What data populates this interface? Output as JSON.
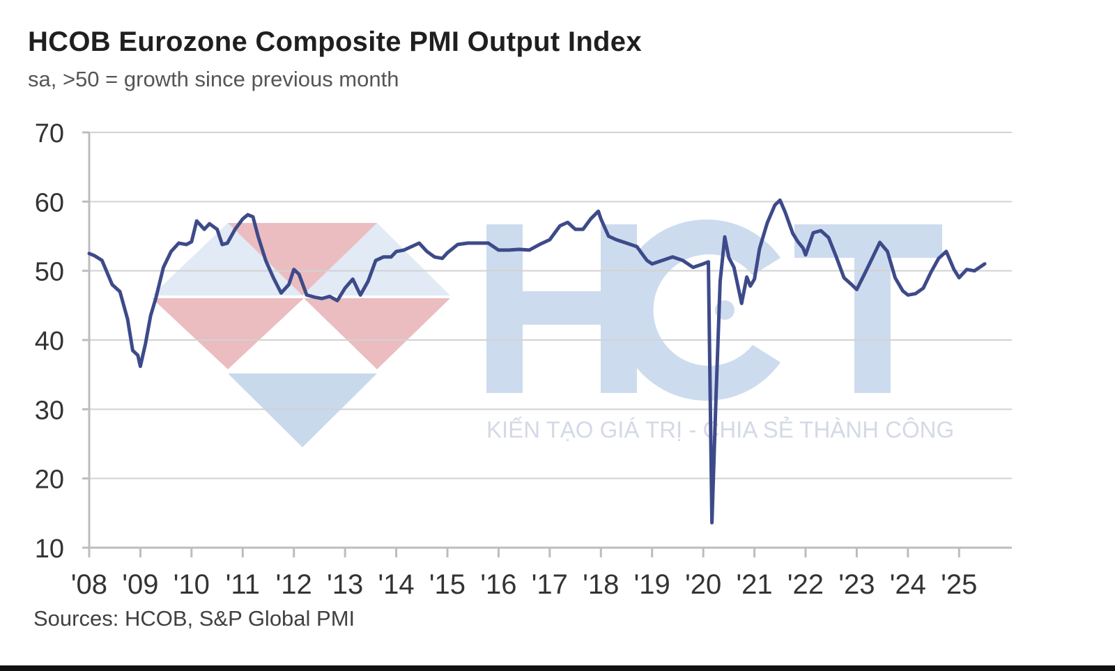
{
  "header": {
    "title": "HCOB Eurozone Composite PMI Output Index",
    "subtitle": "sa, >50 = growth since previous month"
  },
  "footer": {
    "source": "Sources: HCOB, S&P Global PMI"
  },
  "watermark": {
    "logo_text": "HCT",
    "tagline": "KIẾN TẠO GIÁ TRỊ - CHIA SẺ THÀNH CÔNG",
    "logo_colors": {
      "red": "#e8b4b8",
      "blue": "#c5d6ea"
    }
  },
  "chart_data": {
    "type": "line",
    "title": "HCOB Eurozone Composite PMI Output Index",
    "subtitle": "sa, >50 = growth since previous month",
    "xlabel": "",
    "ylabel": "",
    "ylim": [
      10,
      70
    ],
    "yticks": [
      10,
      20,
      30,
      40,
      50,
      60,
      70
    ],
    "xlim": [
      2008.0,
      2025.5
    ],
    "xticks": [
      {
        "value": 2008,
        "label": "'08"
      },
      {
        "value": 2009,
        "label": "'09"
      },
      {
        "value": 2010,
        "label": "'10"
      },
      {
        "value": 2011,
        "label": "'11"
      },
      {
        "value": 2012,
        "label": "'12"
      },
      {
        "value": 2013,
        "label": "'13"
      },
      {
        "value": 2014,
        "label": "'14"
      },
      {
        "value": 2015,
        "label": "'15"
      },
      {
        "value": 2016,
        "label": "'16"
      },
      {
        "value": 2017,
        "label": "'17"
      },
      {
        "value": 2018,
        "label": "'18"
      },
      {
        "value": 2019,
        "label": "'19"
      },
      {
        "value": 2020,
        "label": "'20"
      },
      {
        "value": 2021,
        "label": "'21"
      },
      {
        "value": 2022,
        "label": "'22"
      },
      {
        "value": 2023,
        "label": "'23"
      },
      {
        "value": 2024,
        "label": "'24"
      },
      {
        "value": 2025,
        "label": "'25"
      }
    ],
    "grid": true,
    "series_color": "#3d4a8a",
    "series": [
      {
        "x": [
          2008.0,
          2008.1,
          2008.25,
          2008.45,
          2008.6,
          2008.75,
          2008.85,
          2008.95,
          2009.0,
          2009.1,
          2009.2,
          2009.3,
          2009.45,
          2009.6,
          2009.75,
          2009.9,
          2010.0,
          2010.1,
          2010.25,
          2010.35,
          2010.5,
          2010.6,
          2010.7,
          2010.85,
          2011.0,
          2011.1,
          2011.2,
          2011.3,
          2011.45,
          2011.6,
          2011.75,
          2011.9,
          2012.0,
          2012.1,
          2012.25,
          2012.4,
          2012.55,
          2012.7,
          2012.85,
          2013.0,
          2013.15,
          2013.3,
          2013.45,
          2013.6,
          2013.75,
          2013.9,
          2014.0,
          2014.15,
          2014.3,
          2014.45,
          2014.6,
          2014.75,
          2014.9,
          2015.0,
          2015.2,
          2015.4,
          2015.6,
          2015.8,
          2016.0,
          2016.2,
          2016.4,
          2016.6,
          2016.8,
          2017.0,
          2017.2,
          2017.35,
          2017.5,
          2017.65,
          2017.8,
          2017.95,
          2018.0,
          2018.15,
          2018.3,
          2018.5,
          2018.7,
          2018.9,
          2019.0,
          2019.2,
          2019.4,
          2019.6,
          2019.8,
          2020.0,
          2020.1,
          2020.17,
          2020.25,
          2020.33,
          2020.42,
          2020.5,
          2020.6,
          2020.75,
          2020.85,
          2020.92,
          2021.0,
          2021.1,
          2021.25,
          2021.4,
          2021.5,
          2021.6,
          2021.75,
          2021.85,
          2021.95,
          2022.0,
          2022.15,
          2022.3,
          2022.45,
          2022.6,
          2022.75,
          2022.9,
          2023.0,
          2023.15,
          2023.3,
          2023.45,
          2023.6,
          2023.75,
          2023.9,
          2024.0,
          2024.15,
          2024.3,
          2024.45,
          2024.6,
          2024.75,
          2024.9,
          2025.0,
          2025.15,
          2025.3,
          2025.5
        ],
        "values": [
          52.5,
          52.2,
          51.5,
          48.0,
          47.0,
          43.0,
          38.5,
          37.8,
          36.2,
          39.5,
          43.5,
          46.0,
          50.5,
          52.8,
          54.0,
          53.8,
          54.2,
          57.2,
          56.0,
          56.8,
          56.0,
          53.8,
          54.0,
          56.0,
          57.5,
          58.1,
          57.8,
          55.0,
          51.5,
          49.0,
          46.8,
          48.0,
          50.2,
          49.5,
          46.5,
          46.2,
          46.0,
          46.3,
          45.7,
          47.5,
          48.8,
          46.5,
          48.5,
          51.5,
          52.0,
          52.0,
          52.8,
          53.0,
          53.5,
          54.0,
          52.8,
          52.0,
          51.8,
          52.6,
          53.8,
          54.0,
          54.0,
          54.0,
          53.0,
          53.0,
          53.1,
          53.0,
          53.8,
          54.5,
          56.5,
          57.0,
          56.0,
          56.0,
          57.5,
          58.6,
          57.5,
          55.0,
          54.5,
          54.0,
          53.5,
          51.5,
          51.0,
          51.5,
          52.0,
          51.5,
          50.5,
          51.0,
          51.3,
          13.6,
          31.9,
          48.5,
          54.9,
          51.9,
          50.5,
          45.3,
          49.1,
          47.8,
          48.8,
          53.2,
          56.9,
          59.5,
          60.2,
          58.5,
          55.4,
          54.2,
          53.3,
          52.3,
          55.5,
          55.8,
          54.8,
          52.0,
          49.0,
          48.0,
          47.3,
          49.5,
          51.8,
          54.1,
          52.8,
          49.0,
          47.1,
          46.5,
          46.7,
          47.5,
          49.8,
          51.8,
          52.8,
          50.2,
          49.0,
          50.2,
          50.0,
          51.0
        ],
        "samples_interpolated": false
      }
    ]
  }
}
